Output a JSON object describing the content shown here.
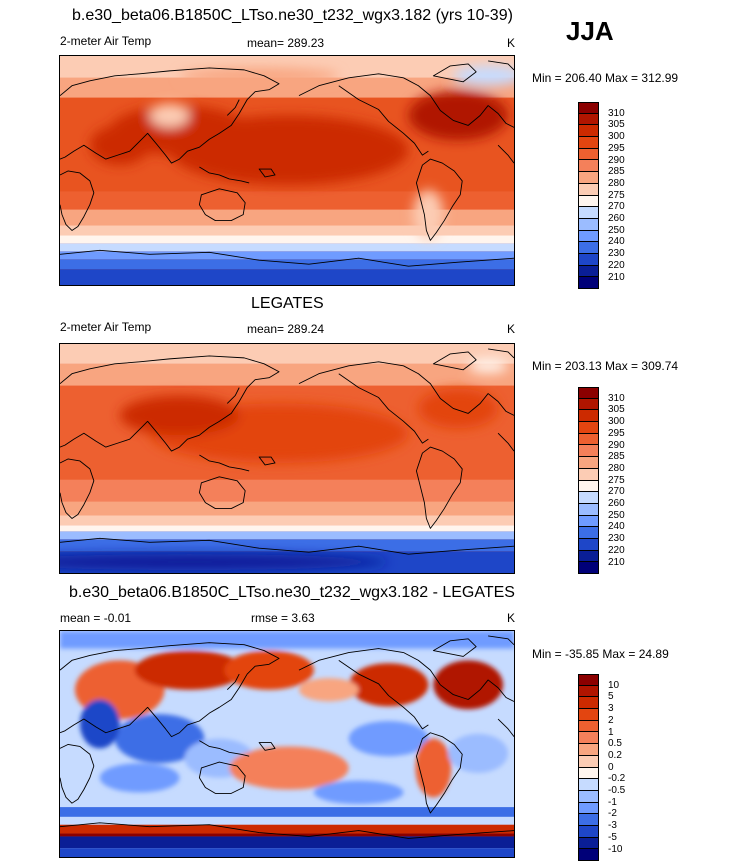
{
  "season": "JJA",
  "panels": [
    {
      "title": "b.e30_beta06.B1850C_LTso.ne30_t232_wgx3.182 (yrs 10-39)",
      "left_label": "2-meter Air Temp",
      "center_label": "mean= 289.23",
      "right_label": "K",
      "minmax": "Min = 206.40 Max = 312.99",
      "map_kind": "model"
    },
    {
      "title": "LEGATES",
      "left_label": "2-meter Air Temp",
      "center_label": "mean= 289.24",
      "right_label": "K",
      "minmax": "Min = 203.13 Max = 309.74",
      "map_kind": "obs"
    },
    {
      "title": "b.e30_beta06.B1850C_LTso.ne30_t232_wgx3.182 - LEGATES",
      "left_label": "mean =  -0.01",
      "center_label": "rmse =   3.63",
      "right_label": "K",
      "minmax": "Min = -35.85 Max =  24.89",
      "map_kind": "diff"
    }
  ],
  "abs_colorbar": {
    "labels": [
      "310",
      "305",
      "300",
      "295",
      "290",
      "285",
      "280",
      "275",
      "270",
      "260",
      "250",
      "240",
      "230",
      "220",
      "210"
    ],
    "colors": [
      "#8b0000",
      "#b01500",
      "#cc2a00",
      "#e34510",
      "#ed6030",
      "#f4805a",
      "#f8a580",
      "#fcccb4",
      "#fff5ee",
      "#c6dbff",
      "#9bbcff",
      "#6f9bff",
      "#3c6ee6",
      "#1e46c8",
      "#0a1e96",
      "#000078"
    ]
  },
  "diff_colorbar": {
    "labels": [
      "10",
      "5",
      "3",
      "2",
      "1",
      "0.5",
      "0.2",
      "0",
      "-0.2",
      "-0.5",
      "-1",
      "-2",
      "-3",
      "-5",
      "-10"
    ],
    "colors": [
      "#8b0000",
      "#b01500",
      "#cc2a00",
      "#e34510",
      "#ed6030",
      "#f4805a",
      "#f8a580",
      "#fcccb4",
      "#fff5ee",
      "#c6dbff",
      "#9bbcff",
      "#6f9bff",
      "#3c6ee6",
      "#1e46c8",
      "#0a1e96",
      "#000078"
    ]
  }
}
